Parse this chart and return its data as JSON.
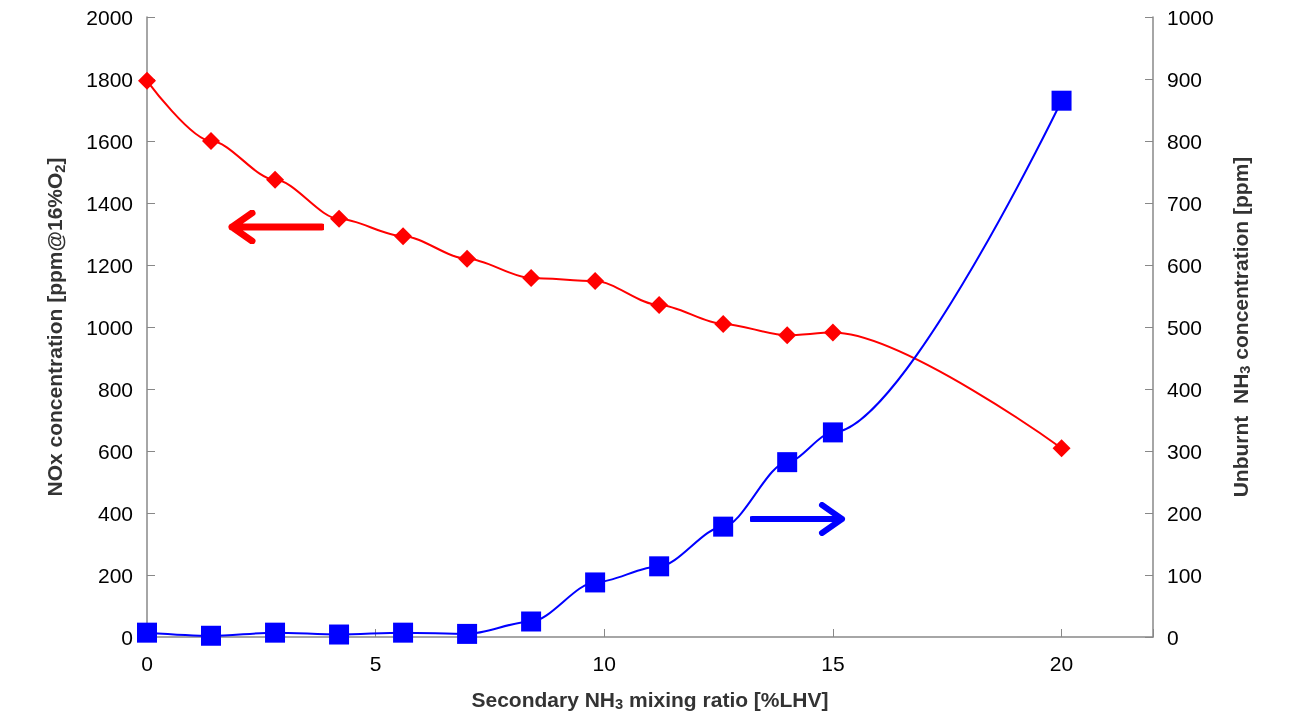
{
  "chart_data": {
    "type": "line",
    "xlabel": "Secondary NH$_{3}$ mixing ratio [%LHV]",
    "ylabel": "NOx concentration [ppm@16%O$_{2}$]",
    "y2label": "Unburnt  NH$_{3}$ concentration [ppm]",
    "x": [
      0,
      1.4,
      2.8,
      4.2,
      5.6,
      7.0,
      8.4,
      9.8,
      11.2,
      12.6,
      14.0,
      15.0,
      20
    ],
    "series": [
      {
        "color": "#ff0000",
        "marker": "diamond",
        "values": [
          1794,
          1600,
          1475,
          1349,
          1293,
          1220,
          1158,
          1148,
          1071,
          1010,
          973,
          982,
          609
        ]
      },
      {
        "color": "#0000ff",
        "marker": "square",
        "axis": "y2",
        "values": [
          7,
          2,
          7,
          4,
          7,
          5,
          25,
          88,
          114,
          178,
          282,
          330,
          865
        ]
      }
    ],
    "xlim": [
      0,
      22
    ],
    "xticks": [
      0,
      5,
      10,
      15,
      20
    ],
    "ylim": [
      0,
      2000
    ],
    "yticks": [
      0,
      200,
      400,
      600,
      800,
      1000,
      1200,
      1400,
      1600,
      1800,
      2000
    ],
    "y2lim": [
      0,
      1000
    ],
    "y2ticks": [
      0,
      100,
      200,
      300,
      400,
      500,
      600,
      700,
      800,
      900,
      1000
    ],
    "grid": false,
    "line_style": "solid"
  }
}
